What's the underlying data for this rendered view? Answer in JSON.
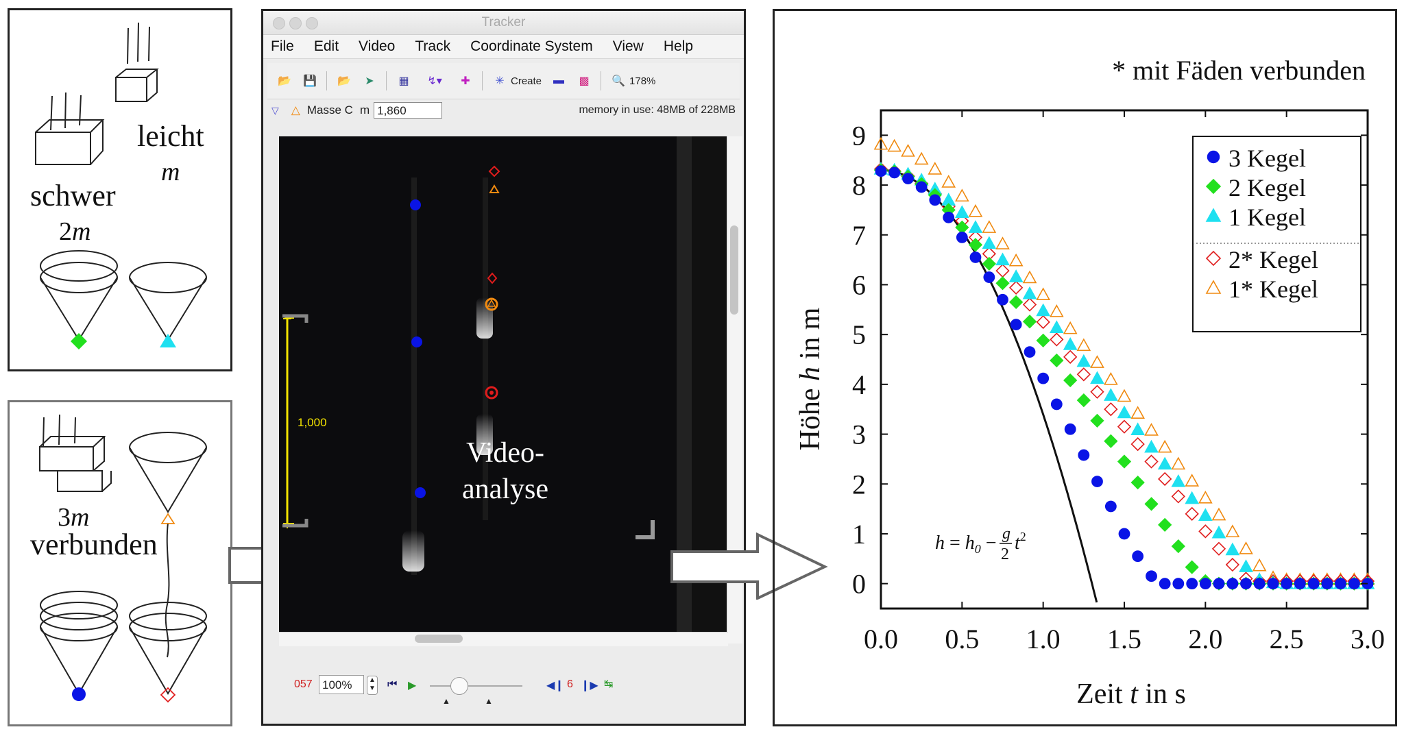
{
  "left_top_sketch": {
    "heavy_label": "schwer",
    "heavy_mass": "2m",
    "light_label": "leicht",
    "light_mass": "m"
  },
  "left_bottom_sketch": {
    "mass_label": "3m",
    "connected_label": "verbunden"
  },
  "tracker": {
    "window_title": "Tracker",
    "menu": [
      "File",
      "Edit",
      "Video",
      "Track",
      "Coordinate System",
      "View",
      "Help"
    ],
    "toolbar": {
      "create_label": "Create",
      "zoom_label": "178%"
    },
    "trackbar": {
      "track_name": "Masse C",
      "mass_symbol": "m",
      "mass_value": "1,860",
      "memory_text": "memory in use: 48MB of 228MB"
    },
    "calibration_label": "1,000",
    "overlay_text_line1": "Video-",
    "overlay_text_line2": "analyse",
    "player": {
      "frame_number": "057",
      "zoom": "100%",
      "step_size": "6"
    }
  },
  "chart_title": "* mit Fäden verbunden",
  "chart_data": {
    "type": "scatter",
    "xlabel_parts": [
      "Zeit ",
      "t",
      " in s"
    ],
    "ylabel_parts": [
      "Höhe ",
      "h",
      " in m"
    ],
    "xlim": [
      0,
      3
    ],
    "ylim": [
      -0.5,
      9.5
    ],
    "x_ticks": [
      "0.0",
      "0.5",
      "1.0",
      "1.5",
      "2.0",
      "2.5",
      "3.0"
    ],
    "y_ticks": [
      "0",
      "1",
      "2",
      "3",
      "4",
      "5",
      "6",
      "7",
      "8",
      "9"
    ],
    "legend_position": "top-right",
    "formula_label": "h = h0 − (g/2) t²",
    "series": [
      {
        "name": "3 Kegel",
        "marker": "circle",
        "color": "#0a14e6",
        "filled": true,
        "x": [
          0.0,
          0.083,
          0.167,
          0.25,
          0.333,
          0.417,
          0.5,
          0.583,
          0.667,
          0.75,
          0.833,
          0.917,
          1.0,
          1.083,
          1.167,
          1.25,
          1.333,
          1.417,
          1.5,
          1.583,
          1.667,
          1.75,
          1.833,
          1.917,
          2.0,
          2.083,
          2.167,
          2.25,
          2.333,
          2.417,
          2.5,
          2.583,
          2.667,
          2.75,
          2.833,
          2.917,
          3.0
        ],
        "y": [
          8.28,
          8.25,
          8.13,
          7.96,
          7.7,
          7.35,
          6.95,
          6.55,
          6.15,
          5.7,
          5.2,
          4.65,
          4.12,
          3.6,
          3.1,
          2.58,
          2.05,
          1.55,
          1.0,
          0.55,
          0.15,
          0.0,
          0.0,
          0.0,
          0.0,
          0.0,
          0.0,
          0.0,
          0.0,
          0.0,
          0.0,
          0.0,
          0.0,
          0.0,
          0.0,
          0.0,
          0.0
        ]
      },
      {
        "name": "2 Kegel",
        "marker": "diamond",
        "color": "#22e01e",
        "filled": true,
        "x": [
          0.0,
          0.083,
          0.167,
          0.25,
          0.333,
          0.417,
          0.5,
          0.583,
          0.667,
          0.75,
          0.833,
          0.917,
          1.0,
          1.083,
          1.167,
          1.25,
          1.333,
          1.417,
          1.5,
          1.583,
          1.667,
          1.75,
          1.833,
          1.917,
          2.0,
          2.083,
          2.167,
          2.25,
          2.333,
          2.417,
          2.5,
          2.583,
          2.667,
          2.75,
          2.833,
          2.917,
          3.0
        ],
        "y": [
          8.3,
          8.27,
          8.17,
          8.02,
          7.8,
          7.5,
          7.15,
          6.8,
          6.42,
          6.03,
          5.65,
          5.26,
          4.88,
          4.48,
          4.08,
          3.68,
          3.27,
          2.86,
          2.45,
          2.03,
          1.6,
          1.18,
          0.75,
          0.33,
          0.05,
          0.0,
          0.0,
          0.0,
          0.0,
          0.0,
          0.0,
          0.0,
          0.0,
          0.0,
          0.0,
          0.0,
          0.0
        ]
      },
      {
        "name": "1 Kegel",
        "marker": "triangle",
        "color": "#1ee0f0",
        "filled": true,
        "x": [
          0.0,
          0.083,
          0.167,
          0.25,
          0.333,
          0.417,
          0.5,
          0.583,
          0.667,
          0.75,
          0.833,
          0.917,
          1.0,
          1.083,
          1.167,
          1.25,
          1.333,
          1.417,
          1.5,
          1.583,
          1.667,
          1.75,
          1.833,
          1.917,
          2.0,
          2.083,
          2.167,
          2.25,
          2.333,
          2.417,
          2.5,
          2.583,
          2.667,
          2.75,
          2.833,
          2.917,
          3.0
        ],
        "y": [
          8.32,
          8.3,
          8.22,
          8.1,
          7.92,
          7.7,
          7.45,
          7.15,
          6.83,
          6.5,
          6.16,
          5.82,
          5.48,
          5.14,
          4.8,
          4.46,
          4.12,
          3.78,
          3.43,
          3.09,
          2.74,
          2.4,
          2.05,
          1.71,
          1.37,
          1.02,
          0.68,
          0.34,
          0.08,
          0.02,
          0.0,
          0.0,
          0.0,
          0.0,
          0.0,
          0.0,
          0.0
        ]
      },
      {
        "name": "2* Kegel",
        "marker": "diamond",
        "color": "#e01c1c",
        "filled": false,
        "x": [
          0.0,
          0.083,
          0.167,
          0.25,
          0.333,
          0.417,
          0.5,
          0.583,
          0.667,
          0.75,
          0.833,
          0.917,
          1.0,
          1.083,
          1.167,
          1.25,
          1.333,
          1.417,
          1.5,
          1.583,
          1.667,
          1.75,
          1.833,
          1.917,
          2.0,
          2.083,
          2.167,
          2.25,
          2.333,
          2.417,
          2.5,
          2.583,
          2.667,
          2.75,
          2.833,
          2.917,
          3.0
        ],
        "y": [
          8.32,
          8.28,
          8.18,
          8.03,
          7.83,
          7.57,
          7.28,
          6.95,
          6.62,
          6.28,
          5.94,
          5.6,
          5.25,
          4.9,
          4.55,
          4.2,
          3.85,
          3.5,
          3.15,
          2.8,
          2.45,
          2.1,
          1.75,
          1.4,
          1.05,
          0.7,
          0.38,
          0.1,
          0.05,
          0.05,
          0.05,
          0.05,
          0.05,
          0.05,
          0.05,
          0.05,
          0.05
        ]
      },
      {
        "name": "1* Kegel",
        "marker": "triangle",
        "color": "#f08a10",
        "filled": false,
        "x": [
          0.0,
          0.083,
          0.167,
          0.25,
          0.333,
          0.417,
          0.5,
          0.583,
          0.667,
          0.75,
          0.833,
          0.917,
          1.0,
          1.083,
          1.167,
          1.25,
          1.333,
          1.417,
          1.5,
          1.583,
          1.667,
          1.75,
          1.833,
          1.917,
          2.0,
          2.083,
          2.167,
          2.25,
          2.333,
          2.417,
          2.5,
          2.583,
          2.667,
          2.75,
          2.833,
          2.917,
          3.0
        ],
        "y": [
          8.82,
          8.78,
          8.68,
          8.52,
          8.32,
          8.06,
          7.78,
          7.47,
          7.15,
          6.82,
          6.48,
          6.14,
          5.8,
          5.46,
          5.12,
          4.78,
          4.44,
          4.1,
          3.76,
          3.42,
          3.08,
          2.74,
          2.4,
          2.06,
          1.72,
          1.38,
          1.04,
          0.7,
          0.36,
          0.12,
          0.08,
          0.08,
          0.08,
          0.08,
          0.08,
          0.08,
          0.08
        ]
      }
    ],
    "freefall_curve": {
      "h0": 8.3,
      "g": 9.81
    }
  }
}
